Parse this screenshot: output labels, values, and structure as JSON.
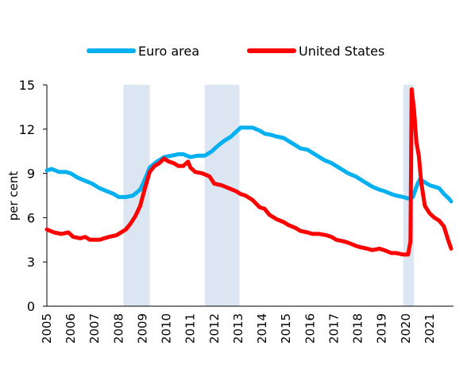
{
  "chart_data": {
    "type": "line",
    "title": "",
    "xlabel": "",
    "ylabel": "per cent",
    "xlim": [
      2005.0,
      2022.0
    ],
    "ylim": [
      0,
      15
    ],
    "yticks": [
      0,
      3,
      6,
      9,
      12,
      15
    ],
    "xtick_labels": [
      "2005",
      "2006",
      "2007",
      "2008",
      "2009",
      "2010",
      "2011",
      "2012",
      "2013",
      "2014",
      "2015",
      "2016",
      "2017",
      "2018",
      "2019",
      "2020",
      "2021"
    ],
    "legend": {
      "placement": "top-center"
    },
    "grid": false,
    "recession_shading": [
      {
        "start": 2008.2,
        "end": 2009.3
      },
      {
        "start": 2011.6,
        "end": 2013.05
      },
      {
        "start": 2019.9,
        "end": 2020.35
      }
    ],
    "series": [
      {
        "name": "Euro area",
        "color": "#00B0F0",
        "points": [
          [
            2005.0,
            9.2
          ],
          [
            2005.2,
            9.3
          ],
          [
            2005.5,
            9.1
          ],
          [
            2005.8,
            9.1
          ],
          [
            2006.0,
            9.0
          ],
          [
            2006.3,
            8.7
          ],
          [
            2006.6,
            8.5
          ],
          [
            2006.9,
            8.3
          ],
          [
            2007.2,
            8.0
          ],
          [
            2007.5,
            7.8
          ],
          [
            2007.8,
            7.6
          ],
          [
            2008.0,
            7.4
          ],
          [
            2008.3,
            7.4
          ],
          [
            2008.6,
            7.5
          ],
          [
            2008.9,
            7.9
          ],
          [
            2009.1,
            8.6
          ],
          [
            2009.3,
            9.4
          ],
          [
            2009.6,
            9.8
          ],
          [
            2009.9,
            10.1
          ],
          [
            2010.2,
            10.2
          ],
          [
            2010.5,
            10.3
          ],
          [
            2010.7,
            10.3
          ],
          [
            2011.0,
            10.1
          ],
          [
            2011.3,
            10.2
          ],
          [
            2011.6,
            10.2
          ],
          [
            2011.9,
            10.5
          ],
          [
            2012.1,
            10.8
          ],
          [
            2012.4,
            11.2
          ],
          [
            2012.7,
            11.5
          ],
          [
            2012.9,
            11.8
          ],
          [
            2013.1,
            12.1
          ],
          [
            2013.4,
            12.1
          ],
          [
            2013.6,
            12.1
          ],
          [
            2013.9,
            11.9
          ],
          [
            2014.1,
            11.7
          ],
          [
            2014.4,
            11.6
          ],
          [
            2014.6,
            11.5
          ],
          [
            2014.9,
            11.4
          ],
          [
            2015.1,
            11.2
          ],
          [
            2015.4,
            10.9
          ],
          [
            2015.6,
            10.7
          ],
          [
            2015.9,
            10.6
          ],
          [
            2016.1,
            10.4
          ],
          [
            2016.4,
            10.1
          ],
          [
            2016.6,
            9.9
          ],
          [
            2016.9,
            9.7
          ],
          [
            2017.1,
            9.5
          ],
          [
            2017.4,
            9.2
          ],
          [
            2017.6,
            9.0
          ],
          [
            2017.9,
            8.8
          ],
          [
            2018.1,
            8.6
          ],
          [
            2018.4,
            8.3
          ],
          [
            2018.6,
            8.1
          ],
          [
            2018.9,
            7.9
          ],
          [
            2019.1,
            7.8
          ],
          [
            2019.4,
            7.6
          ],
          [
            2019.6,
            7.5
          ],
          [
            2019.9,
            7.4
          ],
          [
            2020.1,
            7.3
          ],
          [
            2020.3,
            7.4
          ],
          [
            2020.5,
            8.3
          ],
          [
            2020.6,
            8.6
          ],
          [
            2020.8,
            8.4
          ],
          [
            2021.0,
            8.2
          ],
          [
            2021.2,
            8.1
          ],
          [
            2021.4,
            8.0
          ],
          [
            2021.6,
            7.6
          ],
          [
            2021.8,
            7.3
          ],
          [
            2021.9,
            7.1
          ]
        ]
      },
      {
        "name": "United States",
        "color": "#FF0000",
        "points": [
          [
            2005.0,
            5.2
          ],
          [
            2005.3,
            5.0
          ],
          [
            2005.6,
            4.9
          ],
          [
            2005.9,
            5.0
          ],
          [
            2006.1,
            4.7
          ],
          [
            2006.4,
            4.6
          ],
          [
            2006.6,
            4.7
          ],
          [
            2006.8,
            4.5
          ],
          [
            2007.0,
            4.5
          ],
          [
            2007.2,
            4.5
          ],
          [
            2007.4,
            4.6
          ],
          [
            2007.6,
            4.7
          ],
          [
            2007.9,
            4.8
          ],
          [
            2008.1,
            5.0
          ],
          [
            2008.3,
            5.2
          ],
          [
            2008.5,
            5.6
          ],
          [
            2008.7,
            6.1
          ],
          [
            2008.9,
            6.8
          ],
          [
            2009.1,
            8.0
          ],
          [
            2009.3,
            9.1
          ],
          [
            2009.5,
            9.5
          ],
          [
            2009.7,
            9.7
          ],
          [
            2009.9,
            10.0
          ],
          [
            2010.1,
            9.8
          ],
          [
            2010.3,
            9.7
          ],
          [
            2010.5,
            9.5
          ],
          [
            2010.7,
            9.5
          ],
          [
            2010.9,
            9.8
          ],
          [
            2011.0,
            9.4
          ],
          [
            2011.2,
            9.1
          ],
          [
            2011.5,
            9.0
          ],
          [
            2011.8,
            8.8
          ],
          [
            2012.0,
            8.3
          ],
          [
            2012.3,
            8.2
          ],
          [
            2012.6,
            8.0
          ],
          [
            2012.9,
            7.8
          ],
          [
            2013.1,
            7.6
          ],
          [
            2013.3,
            7.5
          ],
          [
            2013.6,
            7.2
          ],
          [
            2013.9,
            6.7
          ],
          [
            2014.1,
            6.6
          ],
          [
            2014.3,
            6.2
          ],
          [
            2014.6,
            5.9
          ],
          [
            2014.9,
            5.7
          ],
          [
            2015.1,
            5.5
          ],
          [
            2015.4,
            5.3
          ],
          [
            2015.6,
            5.1
          ],
          [
            2015.9,
            5.0
          ],
          [
            2016.1,
            4.9
          ],
          [
            2016.4,
            4.9
          ],
          [
            2016.7,
            4.8
          ],
          [
            2016.9,
            4.7
          ],
          [
            2017.1,
            4.5
          ],
          [
            2017.4,
            4.4
          ],
          [
            2017.6,
            4.3
          ],
          [
            2017.9,
            4.1
          ],
          [
            2018.1,
            4.0
          ],
          [
            2018.4,
            3.9
          ],
          [
            2018.6,
            3.8
          ],
          [
            2018.9,
            3.9
          ],
          [
            2019.1,
            3.8
          ],
          [
            2019.4,
            3.6
          ],
          [
            2019.6,
            3.6
          ],
          [
            2019.9,
            3.5
          ],
          [
            2020.1,
            3.5
          ],
          [
            2020.2,
            4.4
          ],
          [
            2020.25,
            14.7
          ],
          [
            2020.35,
            13.3
          ],
          [
            2020.45,
            11.1
          ],
          [
            2020.55,
            10.2
          ],
          [
            2020.65,
            8.4
          ],
          [
            2020.8,
            6.8
          ],
          [
            2021.0,
            6.3
          ],
          [
            2021.2,
            6.0
          ],
          [
            2021.4,
            5.8
          ],
          [
            2021.6,
            5.4
          ],
          [
            2021.75,
            4.6
          ],
          [
            2021.9,
            3.9
          ]
        ]
      }
    ]
  }
}
